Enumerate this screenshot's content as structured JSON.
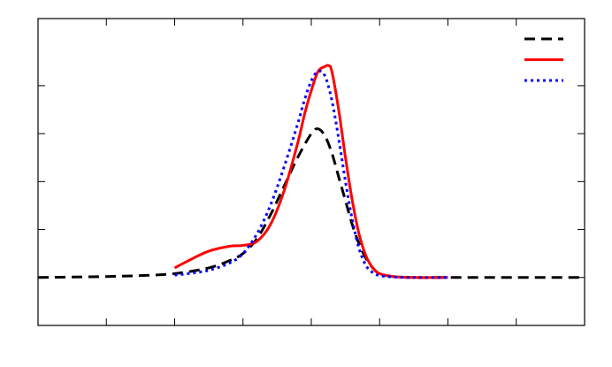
{
  "chart_data": {
    "type": "line",
    "title": "",
    "xlabel": "",
    "ylabel": "",
    "xlim": [
      0,
      8
    ],
    "ylim": [
      -1,
      5.4
    ],
    "x_ticks": [
      0,
      1,
      2,
      3,
      4,
      5,
      6,
      7,
      8
    ],
    "y_ticks": [
      0,
      1,
      2,
      3,
      4
    ],
    "grid": false,
    "legend": "top-right",
    "series": [
      {
        "color": "#000000",
        "style": "dashed",
        "x": [
          0.0,
          0.5,
          1.0,
          1.5,
          2.0,
          2.5,
          2.8,
          3.0,
          3.2,
          3.4,
          3.6,
          3.8,
          4.0,
          4.1,
          4.2,
          4.3,
          4.4,
          4.5,
          4.6,
          4.7,
          4.8,
          4.9,
          5.0,
          5.2,
          5.5,
          6.0,
          6.5,
          7.0,
          7.5,
          8.0
        ],
        "y": [
          0.0,
          0.01,
          0.02,
          0.04,
          0.08,
          0.2,
          0.35,
          0.5,
          0.8,
          1.3,
          1.9,
          2.5,
          3.0,
          3.1,
          2.95,
          2.6,
          2.1,
          1.6,
          1.1,
          0.7,
          0.4,
          0.2,
          0.08,
          0.02,
          0.0,
          0.0,
          0.0,
          0.0,
          0.0,
          0.0
        ]
      },
      {
        "color": "#ff0000",
        "style": "solid",
        "x": [
          2.0,
          2.2,
          2.5,
          2.8,
          3.0,
          3.2,
          3.4,
          3.6,
          3.8,
          3.9,
          4.0,
          4.1,
          4.2,
          4.25,
          4.3,
          4.4,
          4.5,
          4.6,
          4.7,
          4.8,
          4.9,
          5.0,
          5.2,
          5.5,
          6.0
        ],
        "y": [
          0.2,
          0.35,
          0.55,
          0.65,
          0.67,
          0.75,
          1.1,
          1.8,
          2.8,
          3.4,
          3.9,
          4.3,
          4.4,
          4.42,
          4.3,
          3.5,
          2.5,
          1.6,
          0.9,
          0.45,
          0.2,
          0.08,
          0.02,
          0.0,
          0.0
        ]
      },
      {
        "color": "#0000ff",
        "style": "dotted",
        "x": [
          2.0,
          2.2,
          2.5,
          2.8,
          3.0,
          3.2,
          3.4,
          3.6,
          3.8,
          3.9,
          4.0,
          4.1,
          4.2,
          4.3,
          4.4,
          4.5,
          4.6,
          4.7,
          4.8,
          4.9,
          5.0,
          5.2,
          5.5,
          6.0
        ],
        "y": [
          0.05,
          0.08,
          0.15,
          0.3,
          0.5,
          0.9,
          1.5,
          2.3,
          3.2,
          3.7,
          4.1,
          4.3,
          4.2,
          3.7,
          2.9,
          2.0,
          1.2,
          0.6,
          0.25,
          0.1,
          0.04,
          0.01,
          0.0,
          0.0
        ]
      }
    ]
  }
}
